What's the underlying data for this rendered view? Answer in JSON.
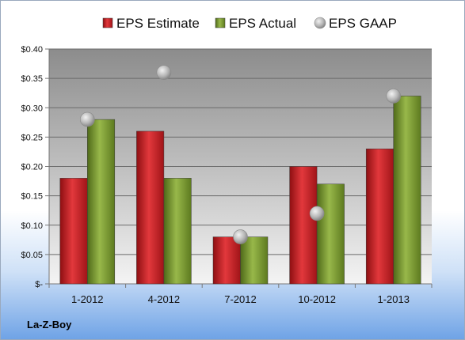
{
  "company": "La-Z-Boy",
  "chart_data": {
    "type": "bar",
    "categories": [
      "1-2012",
      "4-2012",
      "7-2012",
      "10-2012",
      "1-2013"
    ],
    "series": [
      {
        "name": "EPS Estimate",
        "kind": "bar",
        "color": "#c81e22",
        "values": [
          0.18,
          0.26,
          0.08,
          0.2,
          0.23
        ]
      },
      {
        "name": "EPS Actual",
        "kind": "bar",
        "color": "#7a9a2c",
        "values": [
          0.28,
          0.18,
          0.08,
          0.17,
          0.32
        ]
      },
      {
        "name": "EPS GAAP",
        "kind": "marker",
        "color": "#b7b7b7",
        "values": [
          0.28,
          0.36,
          0.08,
          0.12,
          0.32
        ]
      }
    ],
    "ylim": [
      0,
      0.4
    ],
    "yticks": [
      {
        "value": 0,
        "label": "$-"
      },
      {
        "value": 0.05,
        "label": "$0.05"
      },
      {
        "value": 0.1,
        "label": "$0.10"
      },
      {
        "value": 0.15,
        "label": "$0.15"
      },
      {
        "value": 0.2,
        "label": "$0.20"
      },
      {
        "value": 0.25,
        "label": "$0.25"
      },
      {
        "value": 0.3,
        "label": "$0.30"
      },
      {
        "value": 0.35,
        "label": "$0.35"
      },
      {
        "value": 0.4,
        "label": "$0.40"
      }
    ],
    "grid": true,
    "legend_position": "top"
  }
}
